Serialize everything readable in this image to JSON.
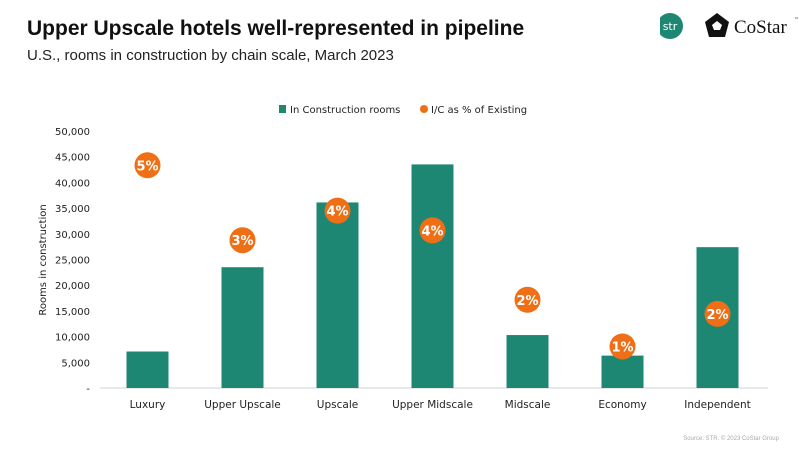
{
  "header": {
    "title": "Upper Upscale hotels well-represented in pipeline",
    "subtitle": "U.S., rooms in construction by chain scale, March 2023",
    "logos": {
      "str": "str",
      "costar": "CoStar",
      "costar_tm": "™"
    }
  },
  "footer": {
    "source": "Source: STR. © 2023 CoStar Group"
  },
  "chart_data": {
    "type": "bar",
    "categories": [
      "Luxury",
      "Upper Upscale",
      "Upscale",
      "Upper Midscale",
      "Midscale",
      "Economy",
      "Independent"
    ],
    "series": [
      {
        "name": "In Construction rooms",
        "type": "bar",
        "color": "#1e8774",
        "values": [
          7100,
          23500,
          36100,
          43500,
          10300,
          6300,
          27400
        ]
      },
      {
        "name": "I/C as % of Existing",
        "type": "marker",
        "color": "#ee6f16",
        "values": [
          5.2,
          3.45,
          4.14,
          3.68,
          2.06,
          0.97,
          1.73
        ],
        "labels": [
          "5%",
          "3%",
          "4%",
          "4%",
          "2%",
          "1%",
          "2%"
        ]
      }
    ],
    "ylabel": "Rooms in construction",
    "ylim": [
      0,
      50000
    ],
    "y2lim": [
      0,
      6
    ],
    "yticks": [
      "-",
      "5,000",
      "10,000",
      "15,000",
      "20,000",
      "25,000",
      "30,000",
      "35,000",
      "40,000",
      "45,000",
      "50,000"
    ],
    "grid": false,
    "legend": "top-center"
  }
}
